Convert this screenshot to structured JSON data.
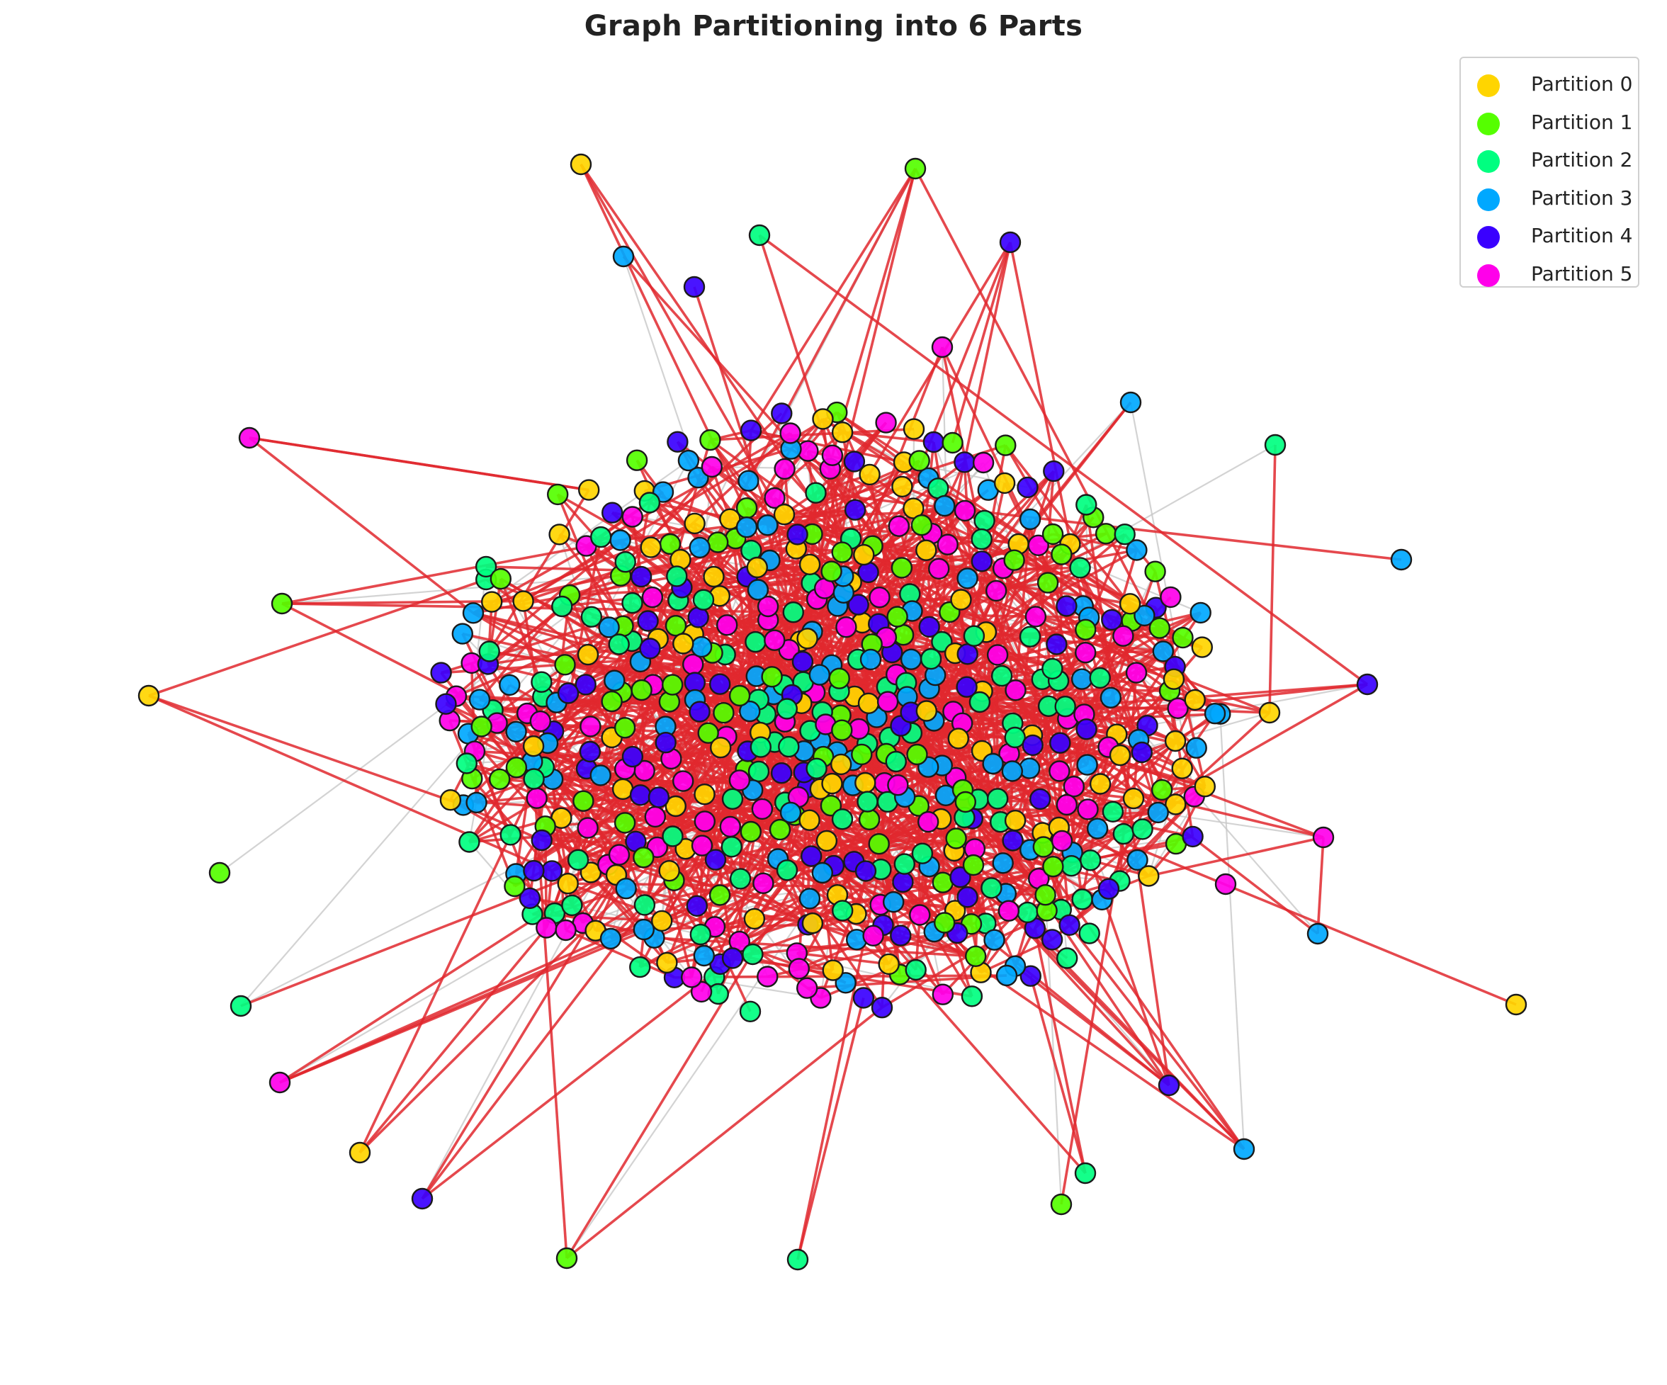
{
  "title": "Graph Partitioning into 6 Parts",
  "partitions": [
    {
      "label": "Partition 0",
      "color": "#ffd500"
    },
    {
      "label": "Partition 1",
      "color": "#55ff00"
    },
    {
      "label": "Partition 2",
      "color": "#00ff80"
    },
    {
      "label": "Partition 3",
      "color": "#00a8ff"
    },
    {
      "label": "Partition 4",
      "color": "#3a00ff"
    },
    {
      "label": "Partition 5",
      "color": "#ff00ea"
    }
  ],
  "colors": {
    "cut_edge": "#e0282e",
    "internal_edge": "#c8c8c8",
    "node_border": "#1a1a1a"
  },
  "graph": {
    "node_count": 600,
    "num_parts": 6,
    "cut_edges_drawn_red": true,
    "internal_edges_drawn_gray": true
  }
}
